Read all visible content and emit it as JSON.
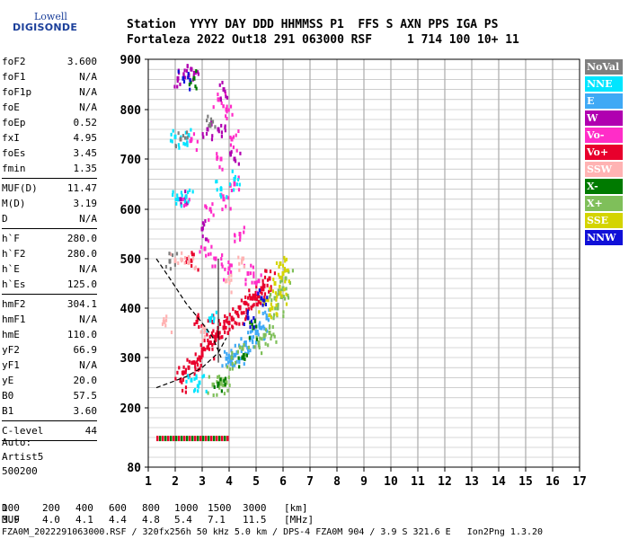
{
  "logo": {
    "line1": "Lowell",
    "line2": "DIGISONDE"
  },
  "header": {
    "labels": [
      "Station",
      "YYYY",
      "DAY",
      "DDD",
      "HHMMSS",
      "P1",
      "FFS",
      "S",
      "AXN",
      "PPS",
      "IGA",
      "PS"
    ],
    "values": [
      "Fortaleza",
      "2022",
      "Out18",
      "291",
      "063000",
      "RSF",
      "",
      "1",
      "714",
      "100",
      "10+",
      "11"
    ]
  },
  "params": [
    {
      "label": "foF2",
      "value": "3.600"
    },
    {
      "label": "foF1",
      "value": "N/A"
    },
    {
      "label": "foF1p",
      "value": "N/A"
    },
    {
      "label": "foE",
      "value": "N/A"
    },
    {
      "label": "foEp",
      "value": "0.52"
    },
    {
      "label": "fxI",
      "value": "4.95"
    },
    {
      "label": "foEs",
      "value": "3.45"
    },
    {
      "label": "fmin",
      "value": "1.35"
    },
    {
      "label": "MUF(D)",
      "value": "11.47"
    },
    {
      "label": "M(D)",
      "value": "3.19"
    },
    {
      "label": "D",
      "value": "N/A"
    },
    {
      "label": "h`F",
      "value": "280.0"
    },
    {
      "label": "h`F2",
      "value": "280.0"
    },
    {
      "label": "h`E",
      "value": "N/A"
    },
    {
      "label": "h`Es",
      "value": "125.0"
    },
    {
      "label": "hmF2",
      "value": "304.1"
    },
    {
      "label": "hmF1",
      "value": "N/A"
    },
    {
      "label": "hmE",
      "value": "110.0"
    },
    {
      "label": "yF2",
      "value": "66.9"
    },
    {
      "label": "yF1",
      "value": "N/A"
    },
    {
      "label": "yE",
      "value": "20.0"
    },
    {
      "label": "B0",
      "value": "57.5"
    },
    {
      "label": "B1",
      "value": "3.60"
    },
    {
      "label": "C-level",
      "value": "44"
    }
  ],
  "autoscaling": {
    "line1": "Auto:",
    "line2": "Artist5",
    "line3": "500200"
  },
  "legend": [
    {
      "label": "NoVal",
      "color": "#7f7f7f"
    },
    {
      "label": "NNE",
      "color": "#00e5ff"
    },
    {
      "label": "E",
      "color": "#3fa9f5"
    },
    {
      "label": "W",
      "color": "#b000b0"
    },
    {
      "label": "Vo-",
      "color": "#ff2dc8"
    },
    {
      "label": "Vo+",
      "color": "#e8002c"
    },
    {
      "label": "SSW",
      "color": "#ffb3b3"
    },
    {
      "label": "X-",
      "color": "#007a00"
    },
    {
      "label": "X+",
      "color": "#7fbf5a"
    },
    {
      "label": "SSE",
      "color": "#d4d400"
    },
    {
      "label": "NNW",
      "color": "#1010d8"
    }
  ],
  "chart_data": {
    "type": "scatter",
    "xlim": [
      1,
      17
    ],
    "ylim": [
      80,
      900
    ],
    "x_ticks": [
      1,
      2,
      3,
      4,
      5,
      6,
      7,
      8,
      9,
      10,
      11,
      12,
      13,
      14,
      15,
      16,
      17
    ],
    "y_ticks": [
      80,
      200,
      300,
      400,
      500,
      600,
      700,
      800,
      900
    ],
    "grid": true,
    "legend_position": "right",
    "series": [
      {
        "name": "Vo+",
        "points": [
          [
            2.9,
            300
          ],
          [
            3.2,
            320
          ],
          [
            3.5,
            340
          ],
          [
            3.8,
            360
          ],
          [
            4.1,
            380
          ],
          [
            4.4,
            400
          ],
          [
            4.8,
            420
          ],
          [
            5.2,
            440
          ],
          [
            5.5,
            460
          ],
          [
            3.3,
            330
          ],
          [
            4.0,
            370
          ],
          [
            4.6,
            410
          ],
          [
            5.0,
            430
          ],
          [
            2.7,
            290
          ],
          [
            2.5,
            280
          ],
          [
            2.3,
            270
          ],
          [
            3.0,
            310
          ],
          [
            3.6,
            345
          ],
          [
            4.3,
            390
          ],
          [
            5.3,
            445
          ],
          [
            4.9,
            425
          ],
          [
            3.4,
            372
          ],
          [
            2.8,
            372
          ],
          [
            2.6,
            496
          ],
          [
            2.2,
            254
          ]
        ]
      },
      {
        "name": "Vo-",
        "points": [
          [
            3.3,
            600
          ],
          [
            3.7,
            700
          ],
          [
            3.9,
            800
          ],
          [
            4.2,
            650
          ],
          [
            4.4,
            550
          ],
          [
            3.5,
            500
          ],
          [
            4.0,
            480
          ],
          [
            4.7,
            470
          ],
          [
            5.1,
            455
          ],
          [
            3.1,
            520
          ],
          [
            3.8,
            620
          ],
          [
            4.1,
            740
          ],
          [
            3.6,
            820
          ],
          [
            2.4,
            610
          ],
          [
            2.6,
            740
          ]
        ]
      },
      {
        "name": "E",
        "points": [
          [
            4.0,
            300
          ],
          [
            4.3,
            310
          ],
          [
            4.6,
            330
          ],
          [
            5.0,
            350
          ],
          [
            5.4,
            380
          ],
          [
            4.8,
            340
          ],
          [
            4.2,
            305
          ],
          [
            5.2,
            360
          ],
          [
            4.5,
            320
          ],
          [
            3.9,
            298
          ]
        ]
      },
      {
        "name": "X+",
        "points": [
          [
            3.4,
            246
          ],
          [
            3.7,
            248
          ],
          [
            3.9,
            250
          ],
          [
            4.1,
            300
          ],
          [
            4.5,
            318
          ],
          [
            5.1,
            330
          ],
          [
            5.5,
            350
          ],
          [
            5.8,
            400
          ],
          [
            6.0,
            440
          ],
          [
            6.1,
            460
          ],
          [
            5.7,
            420
          ],
          [
            5.3,
            345
          ]
        ]
      },
      {
        "name": "SSE",
        "points": [
          [
            5.6,
            400
          ],
          [
            5.9,
            430
          ],
          [
            6.0,
            470
          ],
          [
            5.7,
            450
          ],
          [
            5.3,
            410
          ],
          [
            5.9,
            490
          ]
        ]
      },
      {
        "name": "W",
        "points": [
          [
            2.1,
            862
          ],
          [
            2.5,
            868
          ],
          [
            3.8,
            840
          ],
          [
            3.6,
            760
          ],
          [
            4.2,
            700
          ],
          [
            3.0,
            560
          ],
          [
            2.2,
            620
          ],
          [
            3.2,
            760
          ],
          [
            2.6,
            880
          ]
        ]
      },
      {
        "name": "NNE",
        "points": [
          [
            2.0,
            745
          ],
          [
            2.5,
            748
          ],
          [
            2.1,
            620
          ],
          [
            2.4,
            625
          ],
          [
            2.6,
            255
          ],
          [
            2.9,
            250
          ],
          [
            3.3,
            375
          ],
          [
            4.2,
            660
          ],
          [
            3.7,
            640
          ]
        ]
      },
      {
        "name": "SSW",
        "points": [
          [
            2.0,
            495
          ],
          [
            3.1,
            355
          ],
          [
            3.9,
            455
          ],
          [
            4.5,
            500
          ],
          [
            2.5,
            492
          ],
          [
            1.6,
            372
          ]
        ]
      },
      {
        "name": "X-",
        "points": [
          [
            4.5,
            300
          ],
          [
            3.6,
            248
          ],
          [
            4.9,
            360
          ],
          [
            2.7,
            862
          ]
        ]
      },
      {
        "name": "NoVal",
        "points": [
          [
            1.8,
            495
          ],
          [
            3.3,
            770
          ],
          [
            2.2,
            740
          ]
        ]
      },
      {
        "name": "NNW",
        "points": [
          [
            2.3,
            862
          ],
          [
            4.7,
            380
          ],
          [
            5.2,
            420
          ]
        ]
      }
    ],
    "es_trace": {
      "x_from": 1.3,
      "x_to": 4.0,
      "height": 138
    },
    "dashed_curves": [
      {
        "points": [
          [
            1.3,
            240
          ],
          [
            1.8,
            250
          ],
          [
            2.4,
            262
          ],
          [
            3.0,
            280
          ],
          [
            3.6,
            310
          ],
          [
            3.9,
            340
          ]
        ]
      },
      {
        "points": [
          [
            1.3,
            500
          ],
          [
            1.8,
            460
          ],
          [
            2.4,
            410
          ],
          [
            3.0,
            370
          ],
          [
            3.4,
            340
          ],
          [
            3.7,
            300
          ]
        ]
      }
    ]
  },
  "muf_table": {
    "row1_label": "D",
    "distances": [
      "100",
      "200",
      "400",
      "600",
      "800",
      "1000",
      "1500",
      "3000",
      "[km]"
    ],
    "row2_label": "MUF",
    "mufs": [
      "3.9",
      "4.0",
      "4.1",
      "4.4",
      "4.8",
      "5.4",
      "7.1",
      "11.5",
      "[MHz]"
    ]
  },
  "footer": "FZA0M_2022291063000.RSF / 320fx256h 50 kHz 5.0 km / DPS-4 FZA0M 904 / 3.9 S 321.6 E   Ion2Png 1.3.20"
}
